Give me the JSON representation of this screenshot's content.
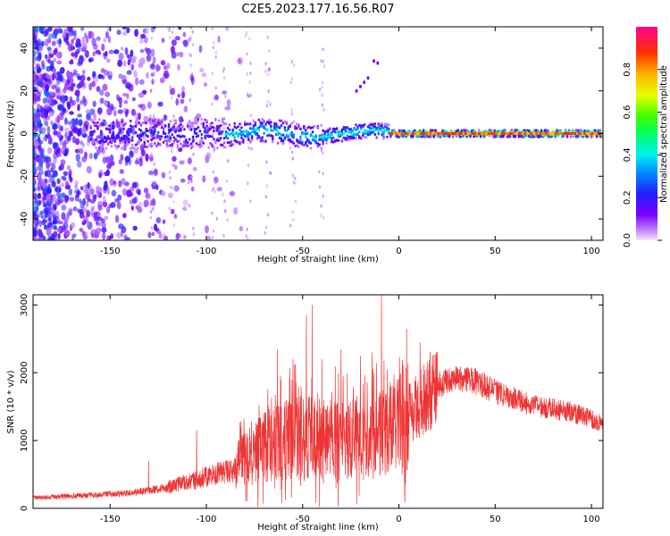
{
  "title": "C2E5.2023.177.16.56.R07",
  "colors": {
    "snr_line": "#ee3333",
    "spectrogram_low": "#9b30ff",
    "spectrogram_high": "#ee2255"
  },
  "chart_data": [
    {
      "type": "heatmap",
      "title": "C2E5.2023.177.16.56.R07",
      "xlabel": "Height of straight line (km)",
      "ylabel": "Frequency (Hz)",
      "xlim": [
        -190,
        106
      ],
      "ylim": [
        -50,
        50
      ],
      "x_ticks": [
        -150,
        -100,
        -50,
        0,
        50,
        100
      ],
      "y_ticks": [
        40,
        20,
        0,
        -20,
        -40
      ],
      "grid": false,
      "colorbar": {
        "label": "Normalized spectral amplitude",
        "range": [
          0,
          1
        ],
        "ticks": [
          0.0,
          0.2,
          0.4,
          0.6,
          0.8
        ],
        "colormap": "rainbow (violet → blue → cyan → green → yellow → orange → red → magenta)"
      },
      "description_features": {
        "main_ridge_frequency_hz": 0,
        "ridge_start_km": -150,
        "ridge_strong_from_km": -5,
        "broadband_noise_region_km": [
          -190,
          -85
        ]
      }
    },
    {
      "type": "line",
      "xlabel": "Height of straight line (km)",
      "ylabel": "SNR (10 * v/v)",
      "xlim": [
        -190,
        106
      ],
      "ylim": [
        0,
        3150
      ],
      "x_ticks": [
        -150,
        -100,
        -50,
        0,
        50,
        100
      ],
      "y_ticks": [
        0,
        1000,
        2000,
        3000
      ],
      "grid": false,
      "series": [
        {
          "color": "#ee3333",
          "trend": {
            "x": [
              -190,
              -160,
              -140,
              -120,
              -100,
              -85,
              -75,
              -60,
              -50,
              -40,
              -30,
              -20,
              -10,
              0,
              10,
              20,
              30,
              40,
              50,
              60,
              70,
              80,
              90,
              100,
              106
            ],
            "y": [
              150,
              190,
              220,
              300,
              450,
              550,
              800,
              950,
              1000,
              950,
              950,
              950,
              1000,
              1200,
              1450,
              1800,
              1900,
              1850,
              1700,
              1600,
              1500,
              1450,
              1400,
              1300,
              1250
            ]
          },
          "peaks": {
            "x": [
              -130,
              -105,
              -80,
              -63,
              -55,
              -48,
              -45,
              -40,
              -30,
              -20,
              -14,
              -9,
              -6,
              4,
              11,
              17,
              24
            ],
            "y": [
              700,
              1150,
              1100,
              2350,
              2200,
              2850,
              3000,
              2200,
              2350,
              2250,
              2300,
              3150,
              2050,
              2650,
              2450,
              2100,
              2050
            ]
          }
        }
      ]
    }
  ]
}
